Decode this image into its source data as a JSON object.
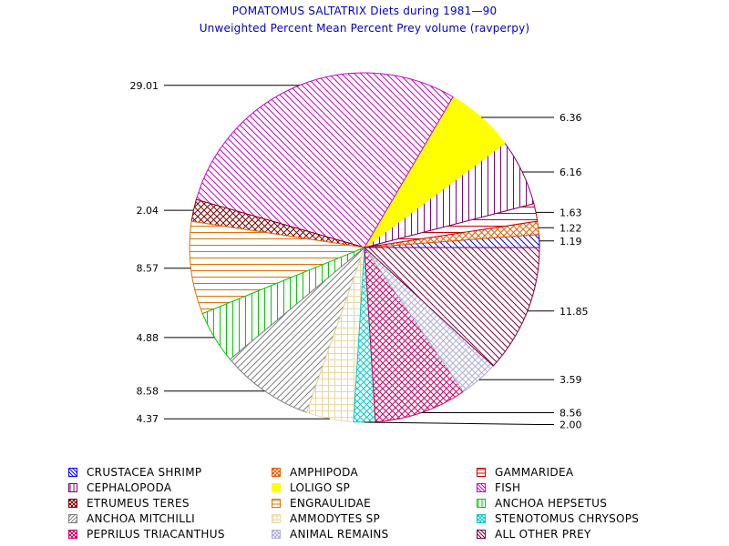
{
  "chart_data": {
    "type": "pie",
    "title": "POMATOMUS SALTATRIX Diets during 1981—90",
    "subtitle": "Unweighted Percent Mean Percent Prey  volume (ravperpy)",
    "slices": [
      {
        "name": "CRUSTACEA SHRIMP",
        "value": 1.19,
        "label": "1.19",
        "color": "#0000ff",
        "pattern": "diag-back"
      },
      {
        "name": "AMPHIPODA",
        "value": 1.22,
        "label": "1.22",
        "color": "#e06000",
        "pattern": "cross-diag"
      },
      {
        "name": "GAMMARIDEA",
        "value": 1.63,
        "label": "1.63",
        "color": "#cc0000",
        "pattern": "horiz"
      },
      {
        "name": "CEPHALOPODA",
        "value": 6.16,
        "label": "6.16",
        "color": "#800080",
        "pattern": "vert"
      },
      {
        "name": "LOLIGO SP",
        "value": 6.36,
        "label": "6.36",
        "color": "#ffff00",
        "pattern": "solid"
      },
      {
        "name": "FISH",
        "value": 29.01,
        "label": "29.01",
        "color": "#cc00cc",
        "pattern": "diag-back"
      },
      {
        "name": "ETRUMEUS TERES",
        "value": 2.04,
        "label": "2.04",
        "color": "#800000",
        "pattern": "cross-diag"
      },
      {
        "name": "ENGRAULIDAE",
        "value": 8.57,
        "label": "8.57",
        "color": "#e07000",
        "pattern": "horiz"
      },
      {
        "name": "ANCHOA HEPSETUS",
        "value": 4.88,
        "label": "4.88",
        "color": "#00cc00",
        "pattern": "vert"
      },
      {
        "name": "ANCHOA MITCHILLI",
        "value": 8.58,
        "label": "8.58",
        "color": "#808080",
        "pattern": "diag-fwd"
      },
      {
        "name": "AMMODYTES SP",
        "value": 4.37,
        "label": "4.37",
        "color": "#e8d8a0",
        "pattern": "grid"
      },
      {
        "name": "STENOTOMUS CHRYSOPS",
        "value": 2.0,
        "label": "2.00",
        "color": "#00cccc",
        "pattern": "cross-diag"
      },
      {
        "name": "PEPRILUS TRIACANTHUS",
        "value": 8.56,
        "label": "8.56",
        "color": "#cc0066",
        "pattern": "cross-diag"
      },
      {
        "name": "ANIMAL REMAINS",
        "value": 3.59,
        "label": "3.59",
        "color": "#b0b0d8",
        "pattern": "cross-diag"
      },
      {
        "name": "ALL OTHER PREY",
        "value": 11.85,
        "label": "11.85",
        "color": "#800040",
        "pattern": "diag-back"
      }
    ],
    "legend_placement": "bottom"
  }
}
